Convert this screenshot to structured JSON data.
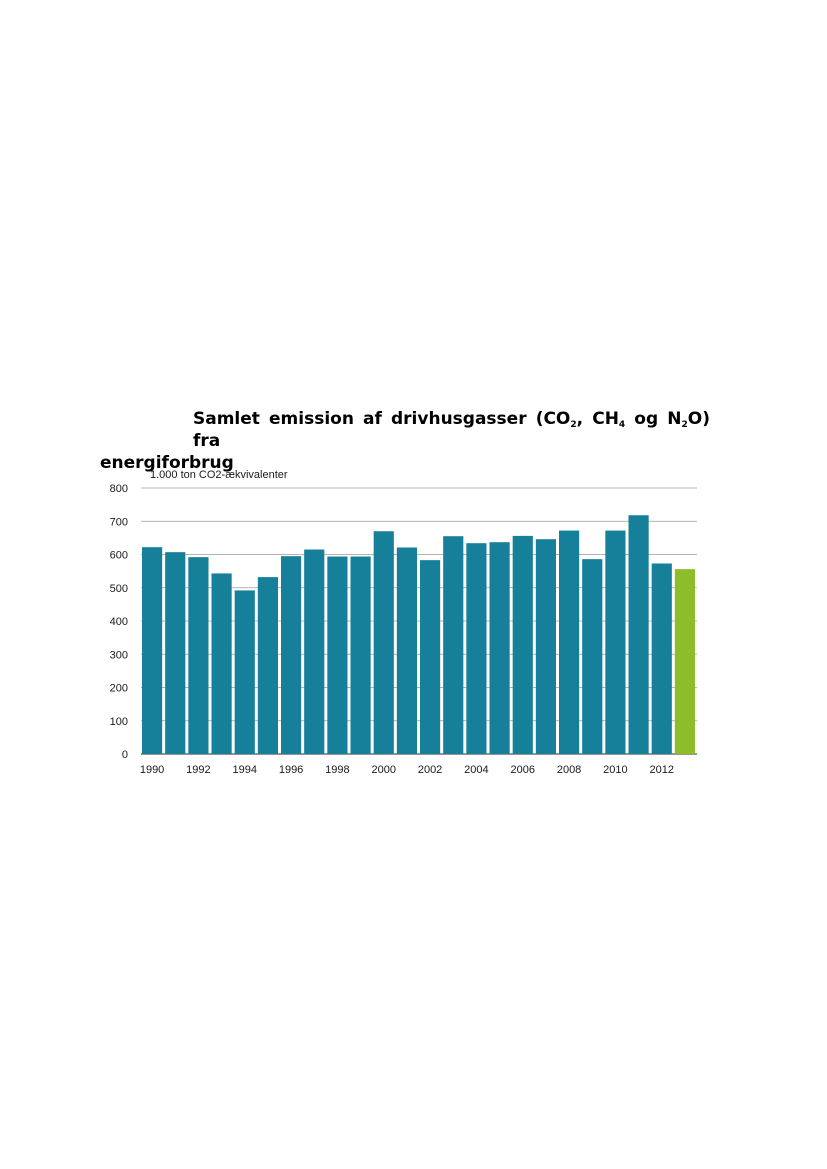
{
  "title": {
    "part1": "Samlet emission af drivhusgasser (CO",
    "sub1": "2",
    "part2": ", CH",
    "sub2": "4",
    "part3": " og N",
    "sub3": "2",
    "part4": "O) fra",
    "line2": "energiforbrug"
  },
  "chart_data": {
    "type": "bar",
    "ylabel": "1.000 ton CO2-ækvivalenter",
    "ylim": [
      0,
      800
    ],
    "yticks": [
      0,
      100,
      200,
      300,
      400,
      500,
      600,
      700,
      800
    ],
    "grid": true,
    "categories": [
      "1990",
      "1991",
      "1992",
      "1993",
      "1994",
      "1995",
      "1996",
      "1997",
      "1998",
      "1999",
      "2000",
      "2001",
      "2002",
      "2003",
      "2004",
      "2005",
      "2006",
      "2007",
      "2008",
      "2009",
      "2010",
      "2011",
      "2012",
      "2013"
    ],
    "xtick_labels": [
      "1990",
      "1992",
      "1994",
      "1996",
      "1998",
      "2000",
      "2002",
      "2004",
      "2006",
      "2008",
      "2010",
      "2012"
    ],
    "values": [
      622,
      607,
      592,
      543,
      492,
      532,
      595,
      615,
      594,
      594,
      670,
      621,
      583,
      655,
      634,
      637,
      656,
      646,
      672,
      586,
      672,
      718,
      573,
      556
    ],
    "colors": {
      "default": "#167f99",
      "highlight": "#8ebd2a",
      "grid": "#9a9a9a",
      "axis": "#555555"
    },
    "highlight_index": 23
  }
}
